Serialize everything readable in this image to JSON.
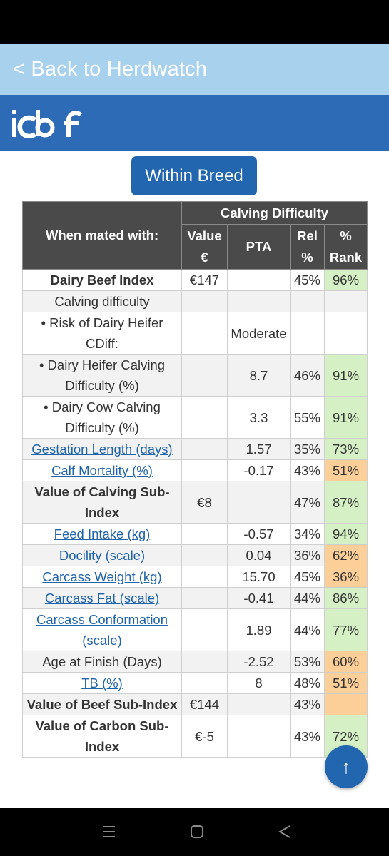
{
  "header": {
    "back_label": "< Back to Herdwatch",
    "logo_text": "icbf"
  },
  "toggle": {
    "label": "Within Breed"
  },
  "colors": {
    "back_bar": "#a7d1ec",
    "header_bar": "#2e6bb6",
    "button": "#2266b0",
    "table_header": "#4a4a4a",
    "rank_green": "#d4f0c4",
    "rank_orange": "#fdcf98",
    "link": "#1f63a8"
  },
  "table": {
    "group_header": "Calving Difficulty",
    "col_mated": "When mated with:",
    "col_value": "Value €",
    "col_pta": "PTA",
    "col_rel": "Rel %",
    "col_rank": "% Rank",
    "rows": [
      {
        "label": "Dairy Beef Index",
        "value": "€147",
        "pta": "",
        "rel": "45%",
        "rank": "96%"
      },
      {
        "label": "Calving difficulty",
        "value": "",
        "pta": "",
        "rel": "",
        "rank": ""
      },
      {
        "label": "• Risk of Dairy Heifer CDiff:",
        "value": "",
        "pta": "Moderate",
        "rel": "",
        "rank": ""
      },
      {
        "label": "• Dairy Heifer Calving Difficulty (%)",
        "value": "",
        "pta": "8.7",
        "rel": "46%",
        "rank": "91%"
      },
      {
        "label": "• Dairy Cow Calving Difficulty (%)",
        "value": "",
        "pta": "3.3",
        "rel": "55%",
        "rank": "91%"
      },
      {
        "label": "Gestation Length (days)",
        "value": "",
        "pta": "1.57",
        "rel": "35%",
        "rank": "73%"
      },
      {
        "label": "Calf Mortality (%)",
        "value": "",
        "pta": "-0.17",
        "rel": "43%",
        "rank": "51%"
      },
      {
        "label": "Value of Calving Sub-Index",
        "value": "€8",
        "pta": "",
        "rel": "47%",
        "rank": "87%"
      },
      {
        "label": "Feed Intake (kg)",
        "value": "",
        "pta": "-0.57",
        "rel": "34%",
        "rank": "94%"
      },
      {
        "label": "Docility (scale)",
        "value": "",
        "pta": "0.04",
        "rel": "36%",
        "rank": "62%"
      },
      {
        "label": "Carcass Weight (kg)",
        "value": "",
        "pta": "15.70",
        "rel": "45%",
        "rank": "36%"
      },
      {
        "label": "Carcass Fat (scale)",
        "value": "",
        "pta": "-0.41",
        "rel": "44%",
        "rank": "86%"
      },
      {
        "label": "Carcass Conformation (scale)",
        "value": "",
        "pta": "1.89",
        "rel": "44%",
        "rank": "77%"
      },
      {
        "label": "Age at Finish (Days)",
        "value": "",
        "pta": "-2.52",
        "rel": "53%",
        "rank": "60%"
      },
      {
        "label": "TB (%)",
        "value": "",
        "pta": "8",
        "rel": "48%",
        "rank": "51%"
      },
      {
        "label": "Value of Beef Sub-Index",
        "value": "€144",
        "pta": "",
        "rel": "43%",
        "rank": ""
      },
      {
        "label": "Value of Carbon Sub-Index",
        "value": "€-5",
        "pta": "",
        "rel": "43%",
        "rank": "72%"
      }
    ]
  },
  "scroll_top": {
    "icon": "arrow-up-icon",
    "glyph": "↑"
  },
  "nav": {
    "recent": "recent-apps-icon",
    "home": "home-icon",
    "back": "back-icon"
  }
}
